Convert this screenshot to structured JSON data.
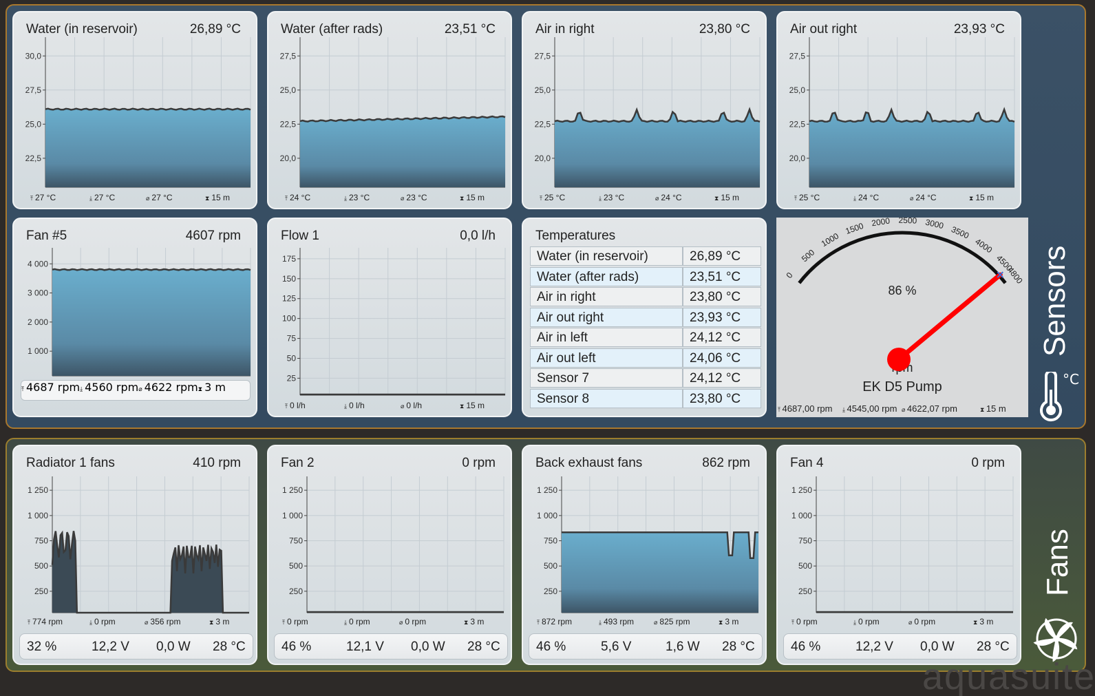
{
  "groups": {
    "sensors": "Sensors",
    "fans": "Fans",
    "sensors_unit": "°C"
  },
  "brand": "aquasuite",
  "sensor_charts": [
    {
      "title": "Water (in reservoir)",
      "value": "26,89 °C",
      "yticks": [
        "30,0",
        "27,5",
        "25,0",
        "22,5"
      ],
      "stats": [
        "27 °C",
        "27 °C",
        "27 °C",
        "15 m"
      ]
    },
    {
      "title": "Water (after rads)",
      "value": "23,51 °C",
      "yticks": [
        "27,5",
        "25,0",
        "22,5",
        "20,0"
      ],
      "stats": [
        "24 °C",
        "23 °C",
        "23 °C",
        "15 m"
      ]
    },
    {
      "title": "Air in right",
      "value": "23,80 °C",
      "yticks": [
        "27,5",
        "25,0",
        "22,5",
        "20,0"
      ],
      "stats": [
        "25 °C",
        "23 °C",
        "24 °C",
        "15 m"
      ]
    },
    {
      "title": "Air out right",
      "value": "23,93 °C",
      "yticks": [
        "27,5",
        "25,0",
        "22,5",
        "20,0"
      ],
      "stats": [
        "25 °C",
        "24 °C",
        "24 °C",
        "15 m"
      ]
    },
    {
      "title": "Fan #5",
      "value": "4607 rpm",
      "yticks": [
        "4 000",
        "3 000",
        "2 000",
        "1 000"
      ],
      "stats": [
        "4687 rpm",
        "4560 rpm",
        "4622 rpm",
        "3 m"
      ]
    },
    {
      "title": "Flow 1",
      "value": "0,0 l/h",
      "yticks": [
        "175",
        "150",
        "125",
        "100",
        "75",
        "50",
        "25"
      ],
      "stats": [
        "0 l/h",
        "0 l/h",
        "0 l/h",
        "15 m"
      ]
    }
  ],
  "temperatures": {
    "title": "Temperatures",
    "rows": [
      {
        "name": "Water (in reservoir)",
        "value": "26,89 °C"
      },
      {
        "name": "Water (after rads)",
        "value": "23,51 °C"
      },
      {
        "name": "Air in right",
        "value": "23,80 °C"
      },
      {
        "name": "Air out right",
        "value": "23,93 °C"
      },
      {
        "name": "Air in left",
        "value": "24,12 °C"
      },
      {
        "name": "Air out left",
        "value": "24,06 °C"
      },
      {
        "name": "Sensor 7",
        "value": "24,12 °C"
      },
      {
        "name": "Sensor 8",
        "value": "23,80 °C"
      }
    ]
  },
  "gauge": {
    "name": "EK D5 Pump",
    "unit": "rpm",
    "percent_label": "86 %",
    "ticks": [
      "0",
      "500",
      "1000",
      "1500",
      "2000",
      "2500",
      "3000",
      "3500",
      "4000",
      "4500",
      "4800"
    ],
    "value_rpm": 4607,
    "max_rpm": 4800,
    "stats": [
      "4687,00 rpm",
      "4545,00 rpm",
      "4622,07 rpm",
      "15 m"
    ]
  },
  "fan_charts": [
    {
      "title": "Radiator 1 fans",
      "value": "410 rpm",
      "yticks": [
        "1 250",
        "1 000",
        "750",
        "500",
        "250"
      ],
      "stats": [
        "774 rpm",
        "0 rpm",
        "356 rpm",
        "3 m"
      ],
      "footer": [
        "32 %",
        "12,2 V",
        "0,0 W",
        "28 °C"
      ]
    },
    {
      "title": "Fan 2",
      "value": "0 rpm",
      "yticks": [
        "1 250",
        "1 000",
        "750",
        "500",
        "250"
      ],
      "stats": [
        "0 rpm",
        "0 rpm",
        "0 rpm",
        "3 m"
      ],
      "footer": [
        "46 %",
        "12,1 V",
        "0,0 W",
        "28 °C"
      ]
    },
    {
      "title": "Back exhaust fans",
      "value": "862 rpm",
      "yticks": [
        "1 250",
        "1 000",
        "750",
        "500",
        "250"
      ],
      "stats": [
        "872 rpm",
        "493 rpm",
        "825 rpm",
        "3 m"
      ],
      "footer": [
        "46 %",
        "5,6 V",
        "1,6 W",
        "28 °C"
      ]
    },
    {
      "title": "Fan 4",
      "value": "0 rpm",
      "yticks": [
        "1 250",
        "1 000",
        "750",
        "500",
        "250"
      ],
      "stats": [
        "0 rpm",
        "0 rpm",
        "0 rpm",
        "3 m"
      ],
      "footer": [
        "46 %",
        "12,2 V",
        "0,0 W",
        "28 °C"
      ]
    }
  ],
  "colors": {
    "area_top": "#6aaecd",
    "area_bottom": "#3d5566",
    "line": "#3a3a3a",
    "needle": "#ff0000"
  }
}
